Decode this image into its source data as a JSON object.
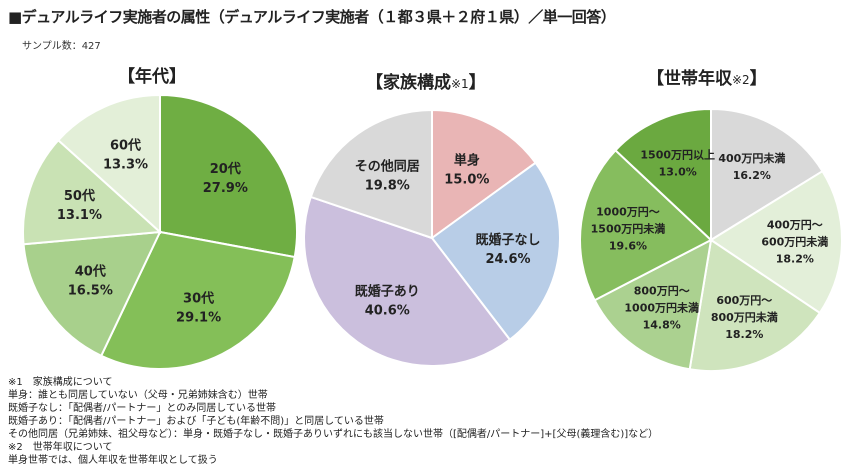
{
  "title": "■デュアルライフ実施者の属性（デュアルライフ実施者（１都３県＋２府１県）／単一回答）",
  "sample": "サンプル数：427",
  "chart_data": [
    {
      "type": "pie",
      "title": "【年代】",
      "note_mark": "",
      "slices": [
        {
          "label": "20代",
          "value": 27.9,
          "display": "27.9%",
          "color": "#6fae43"
        },
        {
          "label": "30代",
          "value": 29.1,
          "display": "29.1%",
          "color": "#84bf58"
        },
        {
          "label": "40代",
          "value": 16.5,
          "display": "16.5%",
          "color": "#a8d08c"
        },
        {
          "label": "50代",
          "value": 13.1,
          "display": "13.1%",
          "color": "#c9e2b4"
        },
        {
          "label": "60代",
          "value": 13.3,
          "display": "13.3%",
          "color": "#e3efd8"
        }
      ]
    },
    {
      "type": "pie",
      "title": "【家族構成",
      "note_mark": "※1",
      "slices": [
        {
          "label": "単身",
          "value": 15.0,
          "display": "15.0%",
          "color": "#e9b5b5"
        },
        {
          "label": "既婚子なし",
          "value": 24.6,
          "display": "24.6%",
          "color": "#b8cde7"
        },
        {
          "label": "既婚子あり",
          "value": 40.6,
          "display": "40.6%",
          "color": "#cbbfdd"
        },
        {
          "label": "その他同居",
          "value": 19.8,
          "display": "19.8%",
          "color": "#d9d9d9"
        }
      ]
    },
    {
      "type": "pie",
      "title": "【世帯年収",
      "note_mark": "※2",
      "slices": [
        {
          "label": "400万円未満",
          "value": 16.2,
          "display": "16.2%",
          "color": "#d9d9d9"
        },
        {
          "label": "400万円～\n600万円未満",
          "value": 18.2,
          "display": "18.2%",
          "color": "#e3efd9"
        },
        {
          "label": "600万円～\n800万円未満",
          "value": 18.2,
          "display": "18.2%",
          "color": "#cfe4bd"
        },
        {
          "label": "800万円～\n1000万円未満",
          "value": 14.8,
          "display": "14.8%",
          "color": "#abd190"
        },
        {
          "label": "1000万円～\n1500万円未満",
          "value": 19.6,
          "display": "19.6%",
          "color": "#86bd5e"
        },
        {
          "label": "1500万円以上",
          "value": 13.0,
          "display": "13.0%",
          "color": "#6ba940"
        }
      ]
    }
  ],
  "title_close": "】",
  "notes": [
    "※1　家族構成について",
    "単身：誰とも同居していない（父母・兄弟姉妹含む）世帯",
    "既婚子なし：「配偶者/パートナー」とのみ同居している世帯",
    "既婚子あり：「配偶者/パートナー」および「子ども(年齢不問)」と同居している世帯",
    "その他同居（兄弟姉妹、祖父母など）：単身・既婚子なし・既婚子ありいずれにも該当しない世帯（[配偶者/パートナー]+[父母(義理含む)]など）",
    "※2　世帯年収について",
    "単身世帯では、個人年収を世帯年収として扱う"
  ]
}
